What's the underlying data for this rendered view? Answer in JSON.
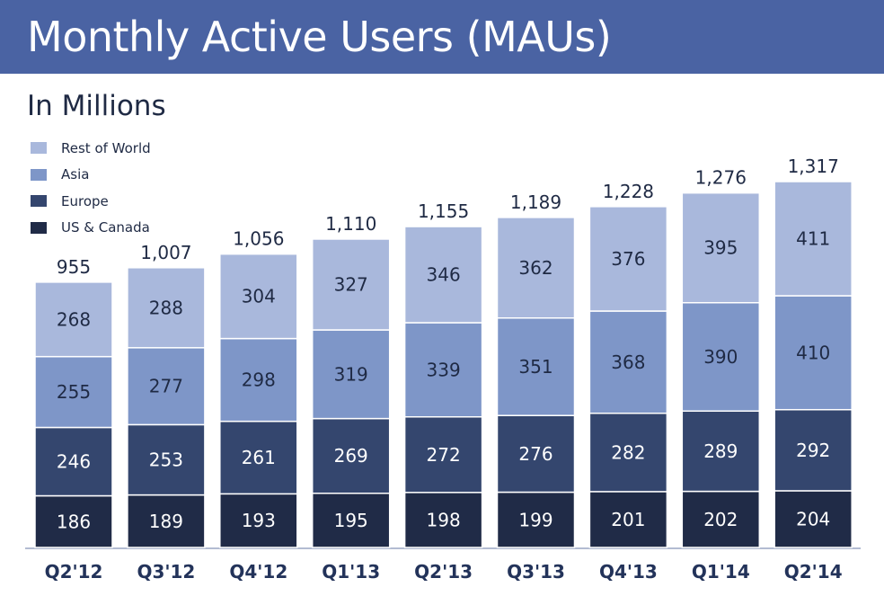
{
  "header": {
    "title": "Monthly Active Users (MAUs)"
  },
  "subtitle": "In Millions",
  "colors": {
    "header_bg": "#4a63a3",
    "rest_of_world": "#a9b8dc",
    "asia": "#7e96c8",
    "europe": "#34466e",
    "us_canada": "#202b47",
    "axis": "#9aa6c4"
  },
  "chart_data": {
    "type": "bar",
    "stacked": true,
    "title": "Monthly Active Users (MAUs)",
    "subtitle": "In Millions",
    "categories": [
      "Q2'12",
      "Q3'12",
      "Q4'12",
      "Q1'13",
      "Q2'13",
      "Q3'13",
      "Q4'13",
      "Q1'14",
      "Q2'14"
    ],
    "series": [
      {
        "name": "US & Canada",
        "values": [
          186,
          189,
          193,
          195,
          198,
          199,
          201,
          202,
          204
        ]
      },
      {
        "name": "Europe",
        "values": [
          246,
          253,
          261,
          269,
          272,
          276,
          282,
          289,
          292
        ]
      },
      {
        "name": "Asia",
        "values": [
          255,
          277,
          298,
          319,
          339,
          351,
          368,
          390,
          410
        ]
      },
      {
        "name": "Rest of World",
        "values": [
          268,
          288,
          304,
          327,
          346,
          362,
          376,
          395,
          411
        ]
      }
    ],
    "totals": [
      "955",
      "1,007",
      "1,056",
      "1,110",
      "1,155",
      "1,189",
      "1,228",
      "1,276",
      "1,317"
    ],
    "legend": [
      "Rest of World",
      "Asia",
      "Europe",
      "US & Canada"
    ],
    "legend_position": "top-left",
    "ylim": [
      0,
      1400
    ],
    "grid": false
  }
}
